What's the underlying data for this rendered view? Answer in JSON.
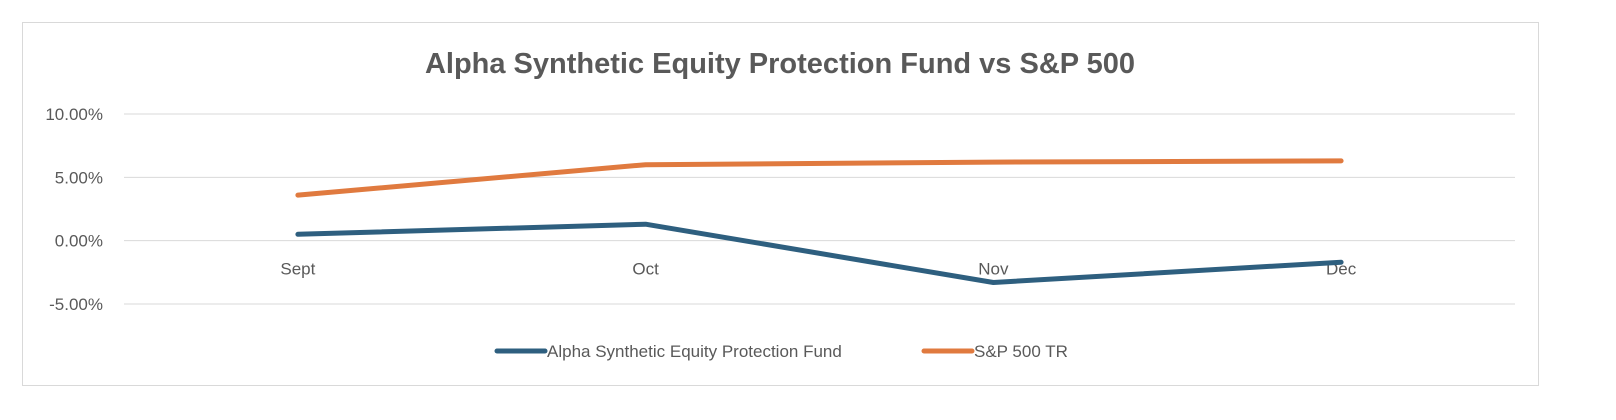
{
  "chart_data": {
    "type": "line",
    "title": "Alpha Synthetic Equity Protection Fund vs S&P 500",
    "categories": [
      "Sept",
      "Oct",
      "Nov",
      "Dec"
    ],
    "series": [
      {
        "name": "Alpha Synthetic Equity Protection Fund",
        "values": [
          0.5,
          1.3,
          -3.3,
          -1.7
        ],
        "color": "#2e5f7f"
      },
      {
        "name": "S&P 500 TR",
        "values": [
          3.6,
          6.0,
          6.2,
          6.3
        ],
        "color": "#e07a3f"
      }
    ],
    "y_ticks": [
      "10.00%",
      "5.00%",
      "0.00%",
      "-5.00%"
    ],
    "ylim": [
      -5,
      10
    ],
    "grid": true,
    "legend_position": "bottom"
  }
}
